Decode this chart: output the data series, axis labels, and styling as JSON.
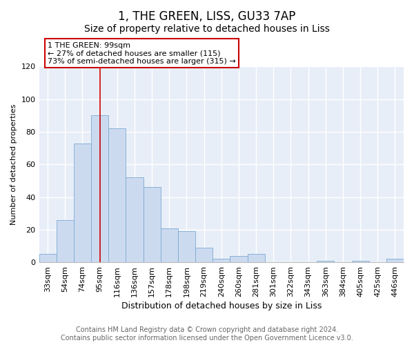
{
  "title": "1, THE GREEN, LISS, GU33 7AP",
  "subtitle": "Size of property relative to detached houses in Liss",
  "xlabel": "Distribution of detached houses by size in Liss",
  "ylabel": "Number of detached properties",
  "bar_labels": [
    "33sqm",
    "54sqm",
    "74sqm",
    "95sqm",
    "116sqm",
    "136sqm",
    "157sqm",
    "178sqm",
    "198sqm",
    "219sqm",
    "240sqm",
    "260sqm",
    "281sqm",
    "301sqm",
    "322sqm",
    "343sqm",
    "363sqm",
    "384sqm",
    "405sqm",
    "425sqm",
    "446sqm"
  ],
  "bar_values": [
    5,
    26,
    73,
    90,
    82,
    52,
    46,
    21,
    19,
    9,
    2,
    4,
    5,
    0,
    0,
    0,
    1,
    0,
    1,
    0,
    2
  ],
  "bar_color": "#ccdaf0",
  "bar_edge_color": "#7aaad0",
  "annotation_line_x_label": "95sqm",
  "annotation_text": "1 THE GREEN: 99sqm\n← 27% of detached houses are smaller (115)\n73% of semi-detached houses are larger (315) →",
  "annotation_box_color": "#ffffff",
  "annotation_box_edge_color": "#cc0000",
  "vline_color": "#cc0000",
  "ylim": [
    0,
    120
  ],
  "yticks": [
    0,
    20,
    40,
    60,
    80,
    100,
    120
  ],
  "footer_line1": "Contains HM Land Registry data © Crown copyright and database right 2024.",
  "footer_line2": "Contains public sector information licensed under the Open Government Licence v3.0.",
  "background_color": "#ffffff",
  "plot_background_color": "#e8eef8",
  "grid_color": "#ffffff",
  "title_fontsize": 12,
  "subtitle_fontsize": 10,
  "xlabel_fontsize": 9,
  "ylabel_fontsize": 8,
  "tick_fontsize": 8,
  "annotation_fontsize": 8,
  "footer_fontsize": 7
}
